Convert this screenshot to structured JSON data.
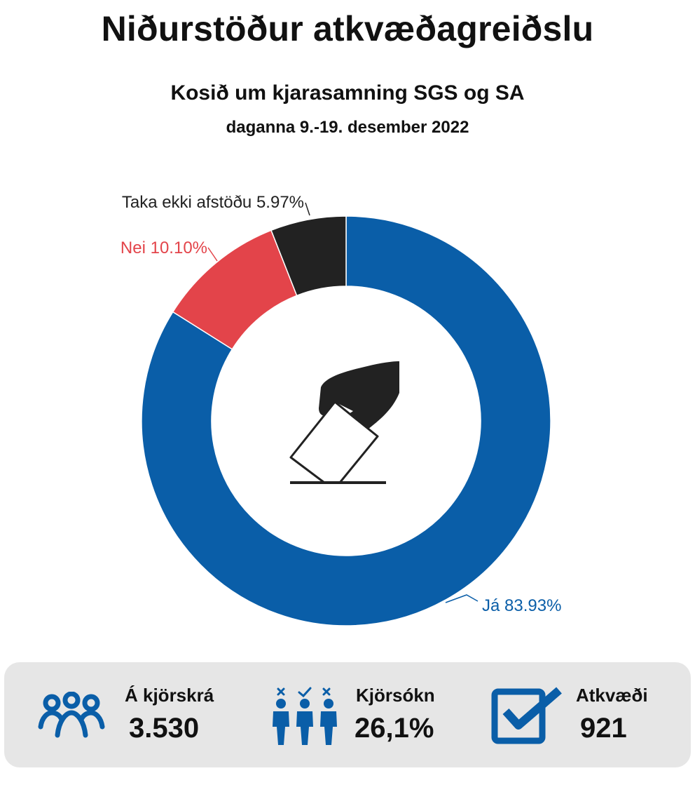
{
  "header": {
    "title": "Niðurstöður atkvæðagreiðslu",
    "subtitle": "Kosið um kjarasamning SGS og SA",
    "dates": "daganna 9.-19. desember 2022"
  },
  "chart_data": {
    "type": "pie",
    "donut": true,
    "slices": [
      {
        "label": "Já",
        "value": 83.93,
        "display": "Já 83.93%",
        "color": "#0a5ea8"
      },
      {
        "label": "Nei",
        "value": 10.1,
        "display": "Nei 10.10%",
        "color": "#e3444a"
      },
      {
        "label": "Taka ekki afstöðu",
        "value": 5.97,
        "display": "Taka ekki afstöðu 5.97%",
        "color": "#222222"
      }
    ],
    "center_icon": "ballot-box-vote-icon"
  },
  "stats": [
    {
      "label": "Á kjörskrá",
      "value": "3.530",
      "icon": "people-group-icon"
    },
    {
      "label": "Kjörsókn",
      "value": "26,1%",
      "icon": "voters-turnout-icon"
    },
    {
      "label": "Atkvæði",
      "value": "921",
      "icon": "checkbox-checked-icon"
    }
  ],
  "colors": {
    "accent": "#0a5ea8",
    "no": "#e3444a",
    "abstain": "#222222",
    "panel": "#e6e6e6"
  }
}
